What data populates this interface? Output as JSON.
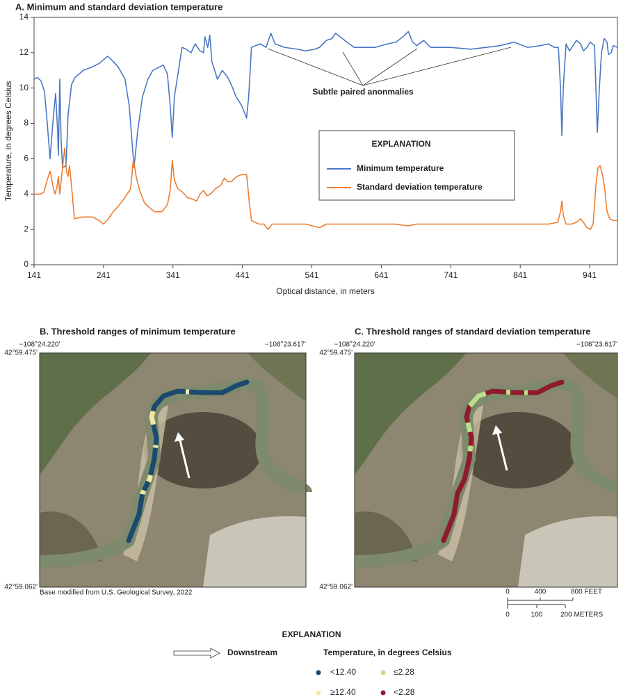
{
  "chart_data": {
    "type": "line",
    "title": "A. Minimum and standard deviation temperature",
    "xlabel": "Optical distance, in meters",
    "ylabel": "Temperature, in degrees Celsius",
    "annotation": "Subtle paired anonmalies",
    "legend_title": "EXPLANATION",
    "xlim": [
      141,
      981
    ],
    "xticks": [
      141,
      241,
      341,
      441,
      541,
      641,
      741,
      841,
      941
    ],
    "ylim": [
      0,
      14
    ],
    "yticks": [
      0,
      2,
      4,
      6,
      8,
      10,
      12,
      14
    ],
    "series": [
      {
        "name": "Minimum temperature",
        "color": "#4a78c4",
        "x": [
          141,
          146,
          151,
          156,
          160,
          164,
          168,
          172,
          175,
          176,
          178,
          180,
          182,
          187,
          190,
          195,
          200,
          212,
          225,
          235,
          247,
          255,
          262,
          272,
          278,
          285,
          290,
          297,
          305,
          312,
          327,
          333,
          337,
          340,
          343,
          347,
          354,
          360,
          367,
          373,
          380,
          385,
          387,
          391,
          394,
          397,
          405,
          412,
          420,
          427,
          432,
          440,
          447,
          450,
          454,
          460,
          467,
          475,
          482,
          488,
          495,
          502,
          520,
          532,
          545,
          552,
          562,
          570,
          575,
          585,
          595,
          602,
          620,
          632,
          650,
          662,
          672,
          680,
          686,
          692,
          702,
          712,
          740,
          770,
          792,
          812,
          832,
          852,
          870,
          882,
          890,
          896,
          899,
          901,
          903,
          907,
          912,
          922,
          928,
          932,
          937,
          942,
          948,
          950,
          952,
          955,
          958,
          962,
          966,
          968,
          972,
          975,
          981
        ],
        "values": [
          10.5,
          10.6,
          10.4,
          9.8,
          8.0,
          6.0,
          8.0,
          9.7,
          7.5,
          6.2,
          10.5,
          7.0,
          5.5,
          5.6,
          8.5,
          10.2,
          10.6,
          11.0,
          11.2,
          11.4,
          11.8,
          11.5,
          11.2,
          10.5,
          9.0,
          5.5,
          7.5,
          9.5,
          10.5,
          11.0,
          11.3,
          10.8,
          9.0,
          7.2,
          9.5,
          10.5,
          12.3,
          12.2,
          12.0,
          12.5,
          12.1,
          12.0,
          12.9,
          12.3,
          13.0,
          11.5,
          10.5,
          11.0,
          10.6,
          10.0,
          9.5,
          9.0,
          8.3,
          9.5,
          12.3,
          12.4,
          12.5,
          12.3,
          13.1,
          12.5,
          12.4,
          12.3,
          12.2,
          12.1,
          12.2,
          12.3,
          12.7,
          12.8,
          13.1,
          12.8,
          12.5,
          12.3,
          12.3,
          12.3,
          12.5,
          12.6,
          12.9,
          13.2,
          12.6,
          12.4,
          12.7,
          12.3,
          12.3,
          12.2,
          12.3,
          12.4,
          12.6,
          12.3,
          12.4,
          12.5,
          12.3,
          12.3,
          10.0,
          7.3,
          10.0,
          12.5,
          12.1,
          12.7,
          12.5,
          12.1,
          12.3,
          12.6,
          12.4,
          10.0,
          7.5,
          10.0,
          12.0,
          12.8,
          12.6,
          11.9,
          12.0,
          12.4,
          12.3
        ]
      },
      {
        "name": "Standard deviation temperature",
        "color": "#ed7d31",
        "x": [
          141,
          150,
          155,
          160,
          164,
          168,
          171,
          174,
          176,
          178,
          182,
          185,
          188,
          190,
          192,
          196,
          199,
          210,
          225,
          235,
          241,
          248,
          255,
          262,
          270,
          280,
          284,
          288,
          293,
          300,
          308,
          315,
          325,
          333,
          337,
          340,
          343,
          348,
          355,
          362,
          370,
          375,
          380,
          385,
          390,
          395,
          402,
          410,
          415,
          420,
          425,
          433,
          440,
          447,
          451,
          454,
          465,
          472,
          478,
          484,
          490,
          510,
          532,
          552,
          562,
          575,
          600,
          632,
          660,
          680,
          692,
          730,
          760,
          792,
          830,
          860,
          882,
          895,
          899,
          901,
          903,
          907,
          915,
          922,
          928,
          932,
          937,
          942,
          946,
          950,
          953,
          956,
          960,
          963,
          966,
          970,
          975,
          981
        ],
        "values": [
          4.0,
          4.0,
          4.1,
          4.8,
          5.3,
          4.5,
          4.0,
          4.4,
          5.0,
          4.0,
          5.5,
          6.6,
          5.2,
          5.0,
          5.6,
          4.0,
          2.6,
          2.7,
          2.7,
          2.5,
          2.3,
          2.6,
          3.0,
          3.3,
          3.7,
          4.3,
          6.0,
          5.0,
          4.2,
          3.5,
          3.2,
          3.0,
          3.0,
          3.4,
          4.2,
          5.9,
          4.8,
          4.3,
          4.1,
          3.8,
          3.7,
          3.6,
          4.0,
          4.2,
          3.9,
          4.0,
          4.3,
          4.5,
          4.9,
          4.7,
          4.7,
          5.0,
          5.1,
          5.1,
          3.5,
          2.5,
          2.3,
          2.3,
          2.0,
          2.3,
          2.3,
          2.3,
          2.3,
          2.1,
          2.3,
          2.3,
          2.3,
          2.3,
          2.3,
          2.2,
          2.3,
          2.3,
          2.3,
          2.3,
          2.3,
          2.3,
          2.3,
          2.4,
          3.0,
          3.6,
          2.8,
          2.3,
          2.3,
          2.4,
          2.6,
          2.4,
          2.1,
          2.0,
          2.3,
          4.5,
          5.5,
          5.6,
          5.0,
          4.2,
          3.0,
          2.6,
          2.5,
          2.5
        ]
      }
    ]
  },
  "map_b": {
    "title": "B. Threshold ranges of minimum temperature",
    "lon_west": "−108°24.220'",
    "lon_east": "−108°23.617'",
    "lat_north": "42°59.475'",
    "lat_south": "42°59.062'",
    "credit": "Base modified from U.S. Geological Survey, 2022"
  },
  "map_c": {
    "title": "C. Threshold ranges of standard deviation temperature",
    "lon_west": "−108°24.220'",
    "lon_east": "−108°23.617'",
    "lat_north": "42°59.475'",
    "lat_south": "42°59.062'",
    "scale_feet": [
      "0",
      "400",
      "800 FEET"
    ],
    "scale_meters": [
      "0",
      "100",
      "200 METERS"
    ]
  },
  "explanation": {
    "title": "EXPLANATION",
    "downstream": "Downstream",
    "heading": "Temperature, in degrees Celsius",
    "classes": [
      "<12.40",
      "≥12.40",
      "≤2.28",
      "<2.28"
    ]
  }
}
